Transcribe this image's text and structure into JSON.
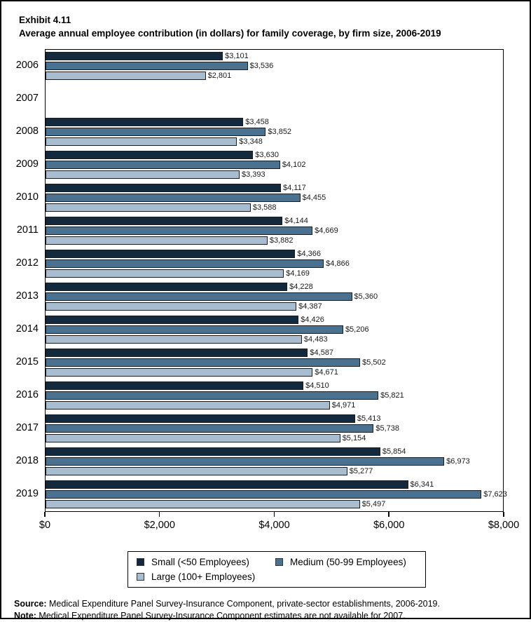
{
  "page": {
    "exhibit_label": "Exhibit 4.11",
    "title": "Average annual employee contribution (in dollars) for family coverage, by firm size, 2006-2019"
  },
  "chart_data": {
    "type": "bar",
    "orientation": "horizontal",
    "title": "Average annual employee contribution (in dollars) for family coverage, by firm size, 2006-2019",
    "categories": [
      "2006",
      "2007",
      "2008",
      "2009",
      "2010",
      "2011",
      "2012",
      "2013",
      "2014",
      "2015",
      "2016",
      "2017",
      "2018",
      "2019"
    ],
    "series": [
      {
        "name": "Small (<50 Employees)",
        "key": "small",
        "color": "#132a3e",
        "values": [
          3101,
          null,
          3458,
          3630,
          4117,
          4144,
          4366,
          4228,
          4426,
          4587,
          4510,
          5413,
          5854,
          6341
        ]
      },
      {
        "name": "Medium (50-99 Employees)",
        "key": "medium",
        "color": "#4b7191",
        "values": [
          3536,
          null,
          3852,
          4102,
          4455,
          4669,
          4866,
          5360,
          5206,
          5502,
          5821,
          5738,
          6973,
          7623
        ]
      },
      {
        "name": "Large (100+ Employees)",
        "key": "large",
        "color": "#a8bdd0",
        "values": [
          2801,
          null,
          3348,
          3393,
          3588,
          3882,
          4169,
          4387,
          4483,
          4671,
          4971,
          5154,
          5277,
          5497
        ]
      }
    ],
    "xlim": [
      0,
      8000
    ],
    "x_ticks": [
      {
        "label": "$0",
        "value": 0
      },
      {
        "label": "$2,000",
        "value": 2000
      },
      {
        "label": "$4,000",
        "value": 4000
      },
      {
        "label": "$6,000",
        "value": 6000
      },
      {
        "label": "$8,000",
        "value": 8000
      }
    ],
    "grid": false,
    "legend_position": "bottom",
    "value_label_prefix": "$",
    "missing_data_year": "2007"
  },
  "legend": {
    "items": [
      {
        "label": "Small (<50 Employees)",
        "series": 0
      },
      {
        "label": "Medium (50-99 Employees)",
        "series": 1
      },
      {
        "label": "Large (100+ Employees)",
        "series": 2
      }
    ]
  },
  "footer": {
    "source_label": "Source:",
    "source_text": " Medical Expenditure Panel Survey-Insurance Component, private-sector establishments, 2006-2019.",
    "note_label": "Note:",
    "note_text": " Medical Expenditure Panel Survey-Insurance Component estimates are not available for 2007."
  }
}
